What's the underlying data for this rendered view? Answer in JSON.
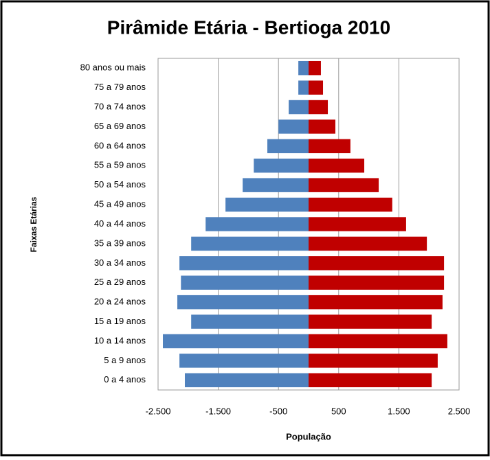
{
  "chart_data": {
    "type": "bar",
    "orientation": "horizontal",
    "title": "Pirâmide Etária - Bertioga 2010",
    "x_label": "População",
    "y_label": "Faixas Etárias",
    "categories": [
      "0 a 4 anos",
      "5 a 9 anos",
      "10 a 14 anos",
      "15 a 19 anos",
      "20 a 24 anos",
      "25 a 29 anos",
      "30 a 34 anos",
      "35 a 39 anos",
      "40 a 44 anos",
      "45 a 49 anos",
      "50 a 54 anos",
      "55 a 59 anos",
      "60 a 64 anos",
      "65 a 69 anos",
      "70 a 74 anos",
      "75 a 79 anos",
      "80 anos ou mais"
    ],
    "series": [
      {
        "color": "#4f81bd",
        "values": [
          -2055,
          -2145,
          -2420,
          -1950,
          -2180,
          -2120,
          -2145,
          -1950,
          -1710,
          -1380,
          -1095,
          -910,
          -685,
          -500,
          -330,
          -170,
          -170
        ]
      },
      {
        "color": "#c00000",
        "values": [
          2045,
          2145,
          2305,
          2045,
          2225,
          2250,
          2250,
          1965,
          1620,
          1390,
          1165,
          925,
          695,
          445,
          320,
          240,
          205
        ]
      }
    ],
    "xlim": [
      -2500,
      2500
    ],
    "xticks": [
      {
        "value": -2500,
        "label": "-2.500"
      },
      {
        "value": -1500,
        "label": "-1.500"
      },
      -500,
      500,
      {
        "value": 1500,
        "label": "1.500"
      },
      {
        "value": 2500,
        "label": "2.500"
      }
    ],
    "grid": true
  }
}
